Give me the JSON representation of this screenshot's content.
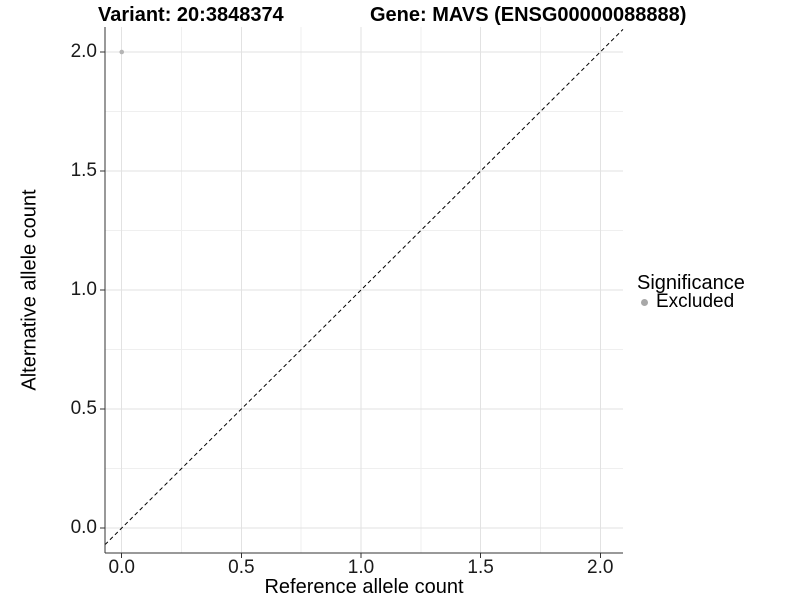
{
  "chart_data": {
    "type": "scatter",
    "title_left": "Variant: 20:3848374",
    "title_right": "Gene: MAVS (ENSG00000088888)",
    "xlabel": "Reference allele count",
    "ylabel": "Alternative allele count",
    "xlim": [
      -0.07,
      2.095
    ],
    "ylim": [
      -0.105,
      2.105
    ],
    "x_ticks": {
      "values": [
        0,
        0.5,
        1,
        1.5,
        2
      ],
      "labels": [
        "0.0",
        "0.5",
        "1.0",
        "1.5",
        "2.0"
      ]
    },
    "y_ticks": {
      "values": [
        0,
        0.5,
        1,
        1.5,
        2
      ],
      "labels": [
        "0.0",
        "0.5",
        "1.0",
        "1.5",
        "2.0"
      ]
    },
    "x_minor": [
      0.25,
      0.75,
      1.25,
      1.75
    ],
    "y_minor": [
      0.25,
      0.75,
      1.25,
      1.75
    ],
    "grid": true,
    "reference_line": {
      "type": "identity",
      "slope": 1,
      "intercept": 0,
      "style": "dashed",
      "color": "#000000"
    },
    "series": [
      {
        "name": "Excluded",
        "color": "#b5b5b5",
        "points": [
          {
            "x": 0,
            "y": 2
          }
        ]
      }
    ],
    "legend": {
      "title": "Significance",
      "position": "right",
      "items": [
        {
          "label": "Excluded",
          "color": "#a8a8a8"
        }
      ]
    },
    "style": {
      "background": "#ffffff",
      "grid_major": "#e2e2e2",
      "grid_minor": "#efefef",
      "axis_line": "#333333",
      "tick_text": "#1a1a1a",
      "point_radius": 2.3,
      "legend_dot_icon": "circle-icon"
    }
  }
}
